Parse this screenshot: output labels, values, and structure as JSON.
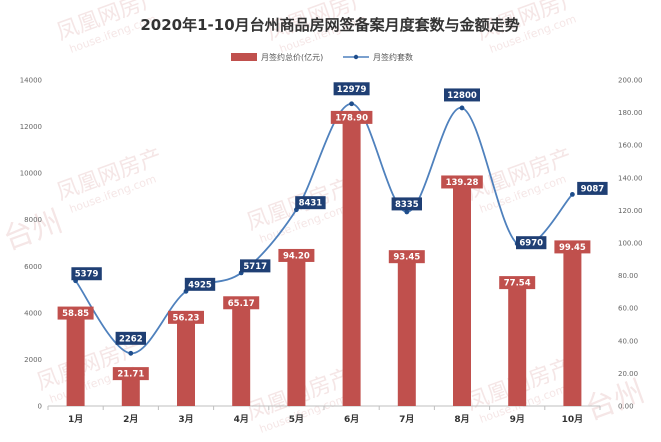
{
  "chart_data": {
    "type": "bar-line-combo",
    "title": "2020年1-10月台州商品房网签备案月度套数与金额走势",
    "categories": [
      "1月",
      "2月",
      "3月",
      "4月",
      "5月",
      "6月",
      "7月",
      "8月",
      "9月",
      "10月"
    ],
    "series": [
      {
        "name": "月签约总价(亿元)",
        "type": "bar",
        "axis": "right",
        "color": "#c0504d",
        "values": [
          58.85,
          21.71,
          56.23,
          65.17,
          94.2,
          178.9,
          93.45,
          139.28,
          77.54,
          99.45
        ],
        "labels": [
          "58.85",
          "21.71",
          "56.23",
          "65.17",
          "94.20",
          "178.90",
          "93.45",
          "139.28",
          "77.54",
          "99.45"
        ]
      },
      {
        "name": "月签约套数",
        "type": "line",
        "axis": "left",
        "color": "#4f81bd",
        "values": [
          5379,
          2262,
          4925,
          5717,
          8431,
          12979,
          8335,
          12800,
          6970,
          9087
        ],
        "labels": [
          "5379",
          "2262",
          "4925",
          "5717",
          "8431",
          "12979",
          "8335",
          "12800",
          "6970",
          "9087"
        ]
      }
    ],
    "y_left": {
      "min": 0,
      "max": 14000,
      "ticks": [
        "0",
        "2000",
        "4000",
        "6000",
        "8000",
        "10000",
        "12000",
        "14000"
      ]
    },
    "y_right": {
      "min": 0,
      "max": 200,
      "ticks": [
        "0.00",
        "20.00",
        "40.00",
        "60.00",
        "80.00",
        "100.00",
        "120.00",
        "140.00",
        "160.00",
        "180.00",
        "200.00"
      ]
    },
    "legend_position": "top-center",
    "grid": false,
    "label_colors": {
      "bar": "#c0504d",
      "line": "#1f3f74"
    }
  },
  "watermark": {
    "text_cn": "凤凰网房产",
    "text_en": "house.ifeng.com",
    "text_city": "台州"
  }
}
